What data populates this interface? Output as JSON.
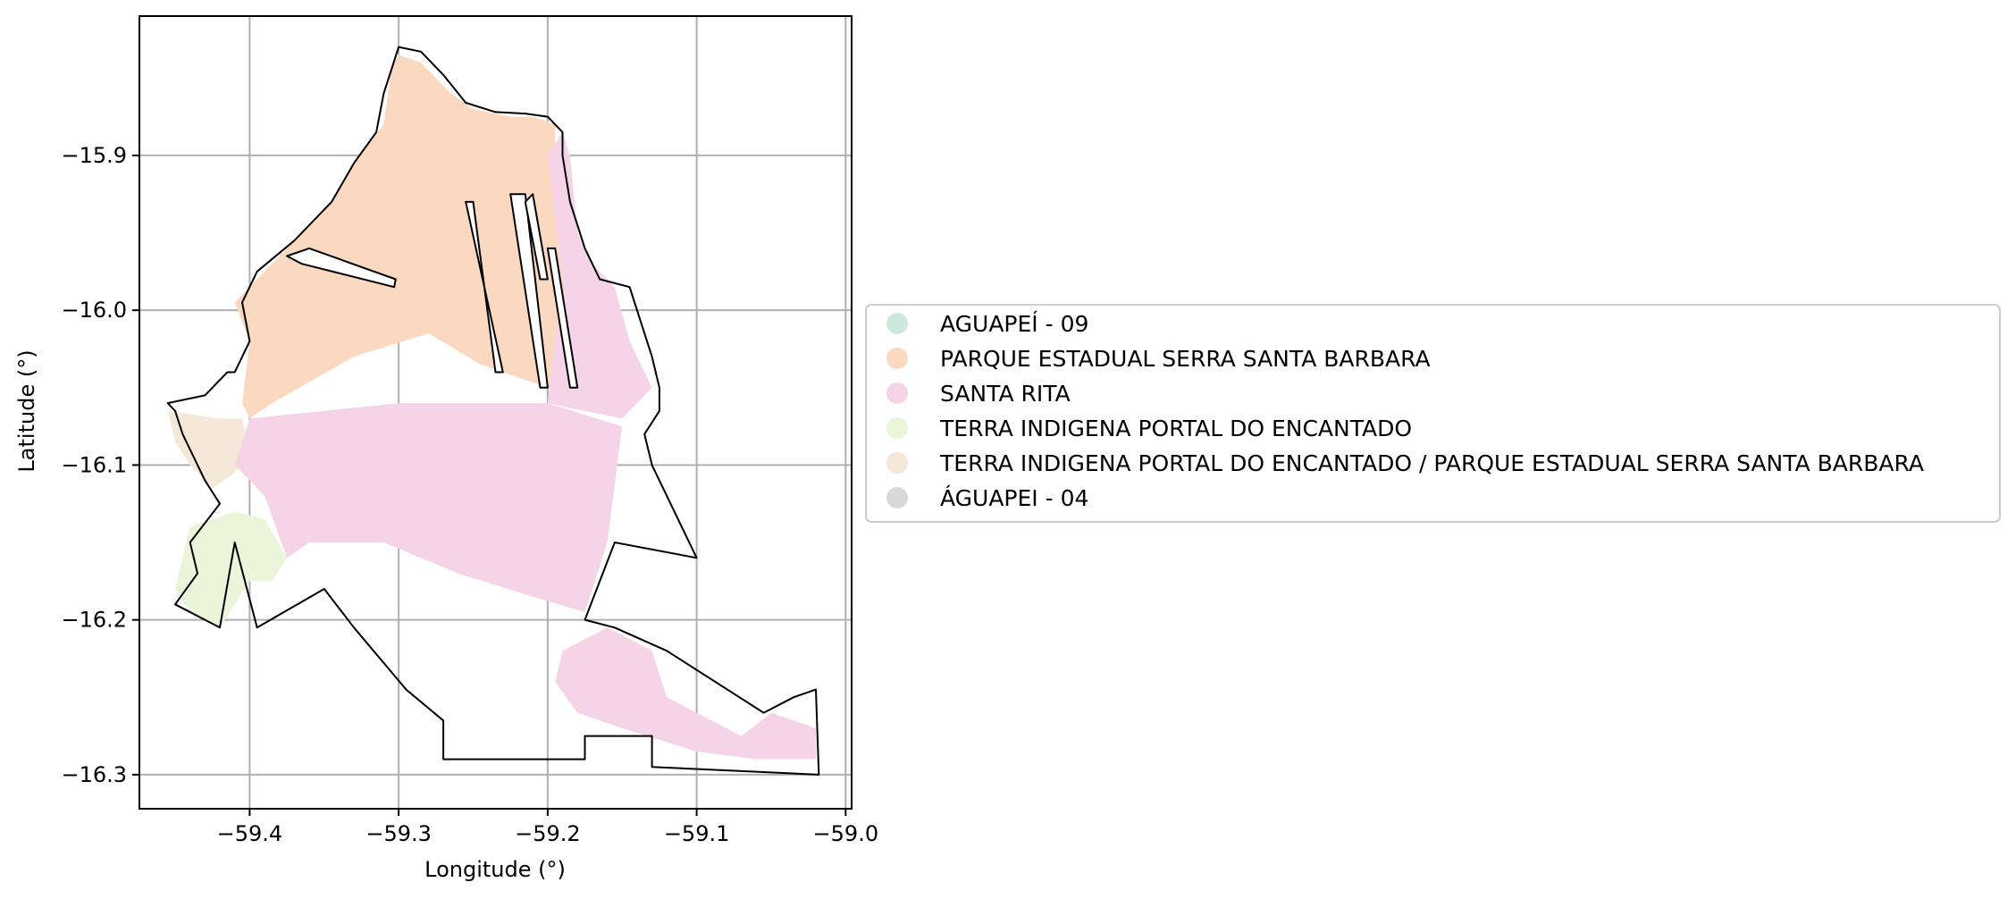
{
  "axes": {
    "xlabel": "Longitude (°)",
    "ylabel": "Latitude (°)",
    "x_ticks": [
      {
        "value": -59.4,
        "label": "−59.4"
      },
      {
        "value": -59.3,
        "label": "−59.3"
      },
      {
        "value": -59.2,
        "label": "−59.2"
      },
      {
        "value": -59.1,
        "label": "−59.1"
      },
      {
        "value": -59.0,
        "label": "−59.0"
      }
    ],
    "y_ticks": [
      {
        "value": -15.9,
        "label": "−15.9"
      },
      {
        "value": -16.0,
        "label": "−16.0"
      },
      {
        "value": -16.1,
        "label": "−16.1"
      },
      {
        "value": -16.2,
        "label": "−16.2"
      },
      {
        "value": -16.3,
        "label": "−16.3"
      }
    ],
    "xlim": [
      -59.474,
      -58.996
    ],
    "ylim": [
      -16.322,
      -15.81
    ],
    "grid": true
  },
  "legend": {
    "placement": "center-left outside plot",
    "items": [
      {
        "label": "AGUAPEÍ - 09",
        "color": "#cde9dd"
      },
      {
        "label": "PARQUE ESTADUAL SERRA SANTA BARBARA",
        "color": "#fbd9c0"
      },
      {
        "label": "SANTA RITA",
        "color": "#f4d4e6"
      },
      {
        "label": "TERRA INDIGENA PORTAL DO ENCANTADO",
        "color": "#ebf5d9"
      },
      {
        "label": "TERRA INDIGENA PORTAL DO ENCANTADO / PARQUE ESTADUAL SERRA SANTA BARBARA",
        "color": "#f5e8d9"
      },
      {
        "label": "ÁGUAPEI - 04",
        "color": "#d9d9d9"
      }
    ]
  },
  "map": {
    "zones": [
      {
        "name": "PARQUE ESTADUAL SERRA SANTA BARBARA",
        "color": "#fbd9c0",
        "coords": [
          [
            -59.3,
            -15.835
          ],
          [
            -59.285,
            -15.84
          ],
          [
            -59.265,
            -15.86
          ],
          [
            -59.25,
            -15.87
          ],
          [
            -59.225,
            -15.875
          ],
          [
            -59.21,
            -15.875
          ],
          [
            -59.195,
            -15.88
          ],
          [
            -59.195,
            -15.93
          ],
          [
            -59.19,
            -15.98
          ],
          [
            -59.175,
            -16.0
          ],
          [
            -59.165,
            -16.025
          ],
          [
            -59.16,
            -16.045
          ],
          [
            -59.2,
            -16.05
          ],
          [
            -59.245,
            -16.035
          ],
          [
            -59.28,
            -16.015
          ],
          [
            -59.33,
            -16.03
          ],
          [
            -59.385,
            -16.06
          ],
          [
            -59.4,
            -16.07
          ],
          [
            -59.405,
            -16.06
          ],
          [
            -59.4,
            -16.02
          ],
          [
            -59.41,
            -15.995
          ],
          [
            -59.39,
            -15.975
          ],
          [
            -59.37,
            -15.955
          ],
          [
            -59.345,
            -15.93
          ],
          [
            -59.33,
            -15.905
          ],
          [
            -59.31,
            -15.88
          ],
          [
            -59.305,
            -15.845
          ]
        ]
      },
      {
        "name": "TERRA INDIGENA PORTAL DO ENCANTADO / PARQUE ESTADUAL SERRA SANTA BARBARA",
        "color": "#f5e8d9",
        "coords": [
          [
            -59.455,
            -16.065
          ],
          [
            -59.42,
            -16.07
          ],
          [
            -59.405,
            -16.07
          ],
          [
            -59.4,
            -16.09
          ],
          [
            -59.41,
            -16.105
          ],
          [
            -59.425,
            -16.115
          ],
          [
            -59.44,
            -16.1
          ],
          [
            -59.45,
            -16.085
          ]
        ]
      },
      {
        "name": "TERRA INDIGENA PORTAL DO ENCANTADO",
        "color": "#ebf5d9",
        "coords": [
          [
            -59.44,
            -16.14
          ],
          [
            -59.41,
            -16.13
          ],
          [
            -59.39,
            -16.135
          ],
          [
            -59.375,
            -16.16
          ],
          [
            -59.385,
            -16.175
          ],
          [
            -59.4,
            -16.175
          ],
          [
            -59.42,
            -16.205
          ],
          [
            -59.44,
            -16.195
          ],
          [
            -59.45,
            -16.18
          ],
          [
            -59.445,
            -16.16
          ]
        ]
      },
      {
        "name": "SANTA RITA",
        "color": "#f4d4e6",
        "coords": [
          [
            -59.2,
            -15.9
          ],
          [
            -59.19,
            -15.885
          ],
          [
            -59.185,
            -15.9
          ],
          [
            -59.18,
            -15.95
          ],
          [
            -59.17,
            -15.97
          ],
          [
            -59.155,
            -15.985
          ],
          [
            -59.145,
            -16.02
          ],
          [
            -59.13,
            -16.05
          ],
          [
            -59.15,
            -16.07
          ],
          [
            -59.2,
            -16.06
          ],
          [
            -59.19,
            -15.98
          ]
        ]
      },
      {
        "name": "SANTA RITA",
        "color": "#f4d4e6",
        "coords": [
          [
            -59.4,
            -16.07
          ],
          [
            -59.3,
            -16.06
          ],
          [
            -59.2,
            -16.06
          ],
          [
            -59.15,
            -16.075
          ],
          [
            -59.16,
            -16.15
          ],
          [
            -59.175,
            -16.195
          ],
          [
            -59.21,
            -16.185
          ],
          [
            -59.26,
            -16.17
          ],
          [
            -59.31,
            -16.15
          ],
          [
            -59.36,
            -16.15
          ],
          [
            -59.375,
            -16.16
          ],
          [
            -59.39,
            -16.12
          ],
          [
            -59.41,
            -16.1
          ]
        ]
      },
      {
        "name": "SANTA RITA",
        "color": "#f4d4e6",
        "coords": [
          [
            -59.19,
            -16.22
          ],
          [
            -59.16,
            -16.205
          ],
          [
            -59.13,
            -16.22
          ],
          [
            -59.12,
            -16.25
          ],
          [
            -59.1,
            -16.26
          ],
          [
            -59.07,
            -16.275
          ],
          [
            -59.05,
            -16.26
          ],
          [
            -59.02,
            -16.27
          ],
          [
            -59.02,
            -16.29
          ],
          [
            -59.06,
            -16.29
          ],
          [
            -59.1,
            -16.285
          ],
          [
            -59.15,
            -16.27
          ],
          [
            -59.18,
            -16.26
          ],
          [
            -59.195,
            -16.24
          ]
        ]
      }
    ],
    "boundaries": [
      {
        "name": "main-boundary",
        "coords": [
          [
            -59.3,
            -15.83
          ],
          [
            -59.285,
            -15.833
          ],
          [
            -59.27,
            -15.848
          ],
          [
            -59.255,
            -15.866
          ],
          [
            -59.235,
            -15.872
          ],
          [
            -59.215,
            -15.873
          ],
          [
            -59.2,
            -15.875
          ],
          [
            -59.19,
            -15.885
          ],
          [
            -59.19,
            -15.9
          ],
          [
            -59.185,
            -15.93
          ],
          [
            -59.175,
            -15.96
          ],
          [
            -59.165,
            -15.98
          ],
          [
            -59.145,
            -15.985
          ],
          [
            -59.14,
            -16.0
          ],
          [
            -59.13,
            -16.03
          ],
          [
            -59.125,
            -16.05
          ],
          [
            -59.125,
            -16.065
          ],
          [
            -59.135,
            -16.08
          ],
          [
            -59.13,
            -16.1
          ],
          [
            -59.1,
            -16.16
          ],
          [
            -59.155,
            -16.15
          ],
          [
            -59.175,
            -16.2
          ],
          [
            -59.155,
            -16.205
          ],
          [
            -59.12,
            -16.22
          ],
          [
            -59.055,
            -16.26
          ],
          [
            -59.035,
            -16.25
          ],
          [
            -59.02,
            -16.245
          ],
          [
            -59.018,
            -16.3
          ],
          [
            -59.13,
            -16.295
          ],
          [
            -59.13,
            -16.275
          ],
          [
            -59.175,
            -16.275
          ],
          [
            -59.175,
            -16.29
          ],
          [
            -59.27,
            -16.29
          ],
          [
            -59.27,
            -16.265
          ],
          [
            -59.295,
            -16.245
          ],
          [
            -59.33,
            -16.205
          ],
          [
            -59.35,
            -16.18
          ],
          [
            -59.395,
            -16.205
          ],
          [
            -59.41,
            -16.15
          ],
          [
            -59.42,
            -16.205
          ],
          [
            -59.43,
            -16.2
          ],
          [
            -59.45,
            -16.19
          ],
          [
            -59.435,
            -16.17
          ],
          [
            -59.44,
            -16.15
          ],
          [
            -59.42,
            -16.125
          ],
          [
            -59.43,
            -16.11
          ],
          [
            -59.445,
            -16.08
          ],
          [
            -59.45,
            -16.065
          ],
          [
            -59.455,
            -16.06
          ],
          [
            -59.43,
            -16.055
          ],
          [
            -59.415,
            -16.04
          ],
          [
            -59.41,
            -16.04
          ],
          [
            -59.4,
            -16.02
          ],
          [
            -59.405,
            -15.995
          ],
          [
            -59.395,
            -15.975
          ],
          [
            -59.37,
            -15.955
          ],
          [
            -59.345,
            -15.93
          ],
          [
            -59.33,
            -15.905
          ],
          [
            -59.315,
            -15.885
          ],
          [
            -59.31,
            -15.86
          ],
          [
            -59.305,
            -15.845
          ]
        ]
      },
      {
        "name": "exclusion-strip-1",
        "coords": [
          [
            -59.375,
            -15.965
          ],
          [
            -59.365,
            -15.97
          ],
          [
            -59.303,
            -15.985
          ],
          [
            -59.302,
            -15.98
          ],
          [
            -59.36,
            -15.96
          ]
        ]
      },
      {
        "name": "exclusion-strip-2",
        "coords": [
          [
            -59.255,
            -15.93
          ],
          [
            -59.25,
            -15.93
          ],
          [
            -59.235,
            -16.04
          ],
          [
            -59.23,
            -16.04
          ]
        ]
      },
      {
        "name": "exclusion-strip-3",
        "coords": [
          [
            -59.225,
            -15.925
          ],
          [
            -59.215,
            -15.925
          ],
          [
            -59.2,
            -16.05
          ],
          [
            -59.205,
            -16.05
          ]
        ]
      },
      {
        "name": "exclusion-strip-4",
        "coords": [
          [
            -59.215,
            -15.93
          ],
          [
            -59.205,
            -15.98
          ],
          [
            -59.2,
            -15.98
          ],
          [
            -59.21,
            -15.925
          ]
        ]
      },
      {
        "name": "exclusion-strip-5",
        "coords": [
          [
            -59.2,
            -15.96
          ],
          [
            -59.195,
            -15.96
          ],
          [
            -59.18,
            -16.05
          ],
          [
            -59.185,
            -16.05
          ]
        ]
      }
    ]
  }
}
